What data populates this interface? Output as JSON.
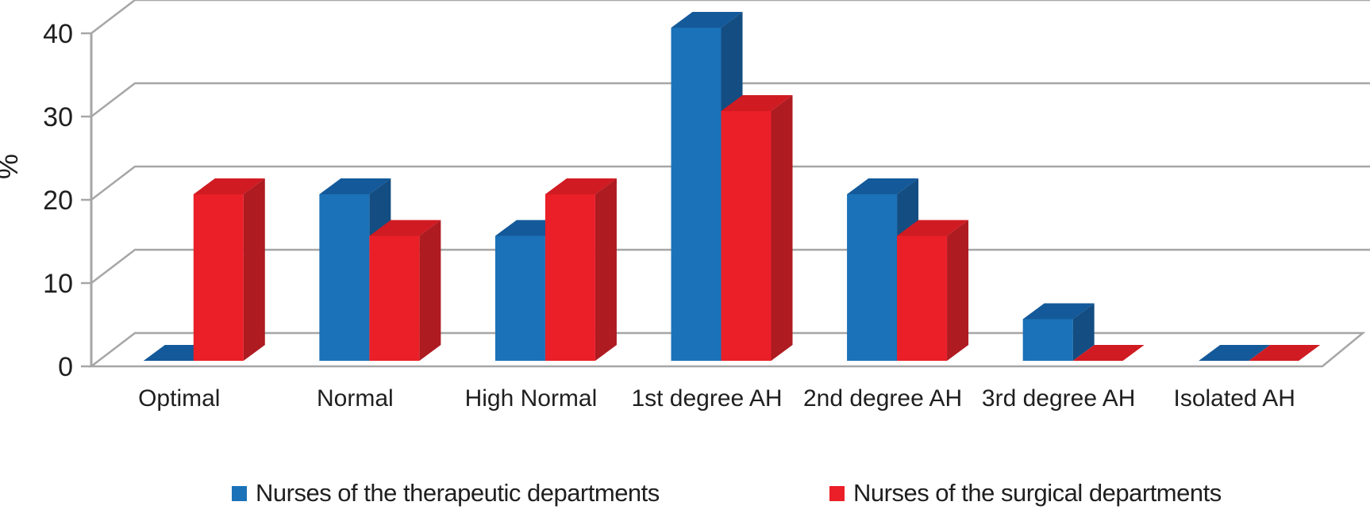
{
  "chart_data": {
    "type": "bar",
    "variant": "3d-clustered-column",
    "title": "",
    "ylabel": "%",
    "xlabel": "",
    "categories": [
      "Optimal",
      "Normal",
      "High Normal",
      "1st degree AH",
      "2nd degree AH",
      "3rd degree AH",
      "Isolated AH"
    ],
    "series": [
      {
        "name": "Nurses of the therapeutic departments",
        "values": [
          0,
          20,
          15,
          40,
          20,
          5,
          0
        ],
        "color": "#1B72B8",
        "color_top": "#14599A",
        "color_side": "#134D82"
      },
      {
        "name": "Nurses of the surgical departments",
        "values": [
          20,
          15,
          20,
          30,
          15,
          0,
          0
        ],
        "color": "#EA1F28",
        "color_top": "#D01B22",
        "color_side": "#AE1B21"
      }
    ],
    "y_ticks": [
      0,
      10,
      20,
      30,
      40
    ],
    "ylim": [
      0,
      40
    ],
    "grid": true,
    "legend_position": "bottom"
  },
  "style_colors": {
    "axis_and_grid": "#A6A6A6",
    "text": "#1F1F1F",
    "background": "#FFFFFF"
  }
}
